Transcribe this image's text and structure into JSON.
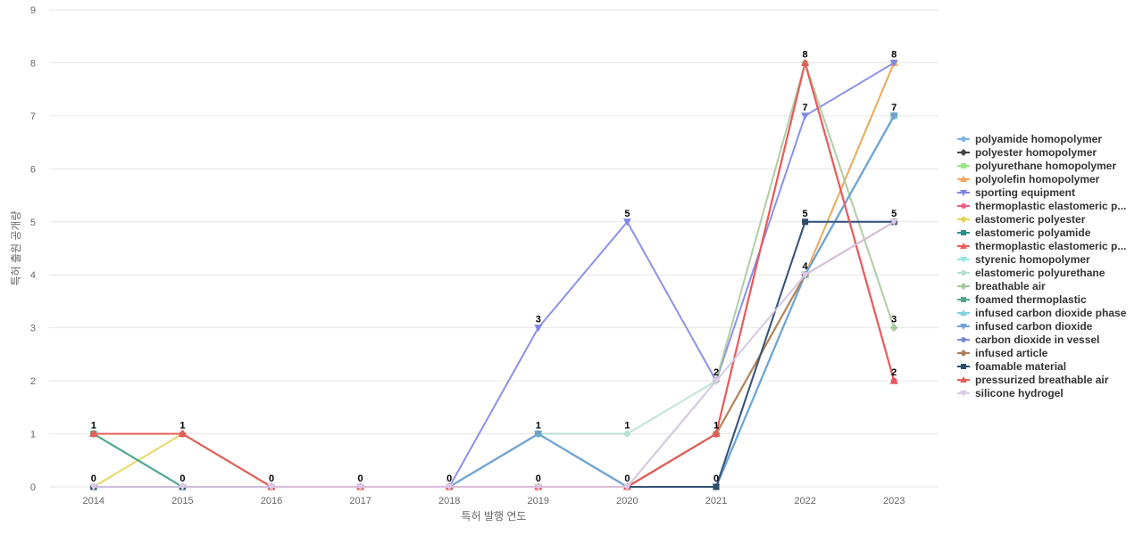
{
  "chart_data": {
    "type": "line",
    "xlabel": "특허 발행 연도",
    "ylabel": "특허 출원 공개량",
    "ylim": [
      0,
      9
    ],
    "x": [
      "2014",
      "2015",
      "2016",
      "2017",
      "2018",
      "2019",
      "2020",
      "2021",
      "2022",
      "2023"
    ],
    "y_ticks": [
      "0",
      "1",
      "2",
      "3",
      "4",
      "5",
      "6",
      "7",
      "8",
      "9"
    ],
    "grid": true,
    "legend_position": "right",
    "series": [
      {
        "name": "polyamide homopolymer",
        "color": "#7cb5ec",
        "marker": "circle",
        "values": [
          0,
          0,
          0,
          0,
          0,
          1,
          0,
          1,
          4,
          7
        ]
      },
      {
        "name": "polyester homopolymer",
        "color": "#434348",
        "marker": "diamond",
        "values": [
          0,
          0,
          0,
          0,
          0,
          1,
          0,
          1,
          4,
          7
        ]
      },
      {
        "name": "polyurethane homopolymer",
        "color": "#90ed7d",
        "marker": "square",
        "values": [
          0,
          0,
          0,
          0,
          0,
          0,
          0,
          1,
          4,
          8
        ]
      },
      {
        "name": "polyolefin homopolymer",
        "color": "#f7a35c",
        "marker": "triangle",
        "values": [
          0,
          0,
          0,
          0,
          0,
          0,
          0,
          1,
          4,
          8
        ]
      },
      {
        "name": "sporting equipment",
        "color": "#8085e9",
        "marker": "triangle-down",
        "values": [
          0,
          0,
          0,
          0,
          0,
          3,
          5,
          2,
          7,
          8
        ]
      },
      {
        "name": "thermoplastic elastomeric p...",
        "color": "#f15c80",
        "marker": "circle",
        "values": [
          0,
          0,
          0,
          0,
          0,
          0,
          0,
          1,
          8,
          2
        ]
      },
      {
        "name": "elastomeric polyester",
        "color": "#e4d354",
        "marker": "diamond",
        "values": [
          0,
          1,
          0,
          0,
          0,
          1,
          0,
          1,
          4,
          7
        ]
      },
      {
        "name": "elastomeric polyamide",
        "color": "#2b908f",
        "marker": "square",
        "values": [
          1,
          0,
          0,
          0,
          0,
          1,
          0,
          0,
          4,
          7
        ]
      },
      {
        "name": "thermoplastic elastomeric p...",
        "color": "#f45b5b",
        "marker": "triangle",
        "values": [
          1,
          1,
          0,
          0,
          0,
          0,
          0,
          1,
          8,
          2
        ]
      },
      {
        "name": "styrenic homopolymer",
        "color": "#91e8e1",
        "marker": "triangle-down",
        "values": [
          0,
          0,
          0,
          0,
          0,
          0,
          0,
          0,
          4,
          7
        ]
      },
      {
        "name": "elastomeric polyurethane",
        "color": "#b4e0d0",
        "marker": "circle",
        "values": [
          0,
          0,
          0,
          0,
          0,
          1,
          1,
          2,
          4,
          7
        ]
      },
      {
        "name": "breathable air",
        "color": "#a5c99b",
        "marker": "diamond",
        "values": [
          0,
          0,
          0,
          0,
          0,
          0,
          0,
          2,
          8,
          3
        ]
      },
      {
        "name": "foamed thermoplastic",
        "color": "#4fa88e",
        "marker": "square",
        "values": [
          1,
          0,
          0,
          0,
          0,
          1,
          0,
          0,
          4,
          7
        ]
      },
      {
        "name": "infused carbon dioxide phase",
        "color": "#7fd0e0",
        "marker": "triangle",
        "values": [
          0,
          0,
          0,
          0,
          0,
          1,
          0,
          0,
          4,
          7
        ]
      },
      {
        "name": "infused carbon dioxide",
        "color": "#6f9fd8",
        "marker": "triangle-down",
        "values": [
          0,
          0,
          0,
          0,
          0,
          1,
          0,
          0,
          4,
          7
        ]
      },
      {
        "name": "carbon dioxide in vessel",
        "color": "#7a8bdc",
        "marker": "circle",
        "values": [
          0,
          0,
          0,
          0,
          0,
          0,
          0,
          0,
          5,
          5
        ]
      },
      {
        "name": "infused article",
        "color": "#b07a5a",
        "marker": "diamond",
        "values": [
          1,
          1,
          0,
          0,
          0,
          0,
          0,
          1,
          4,
          5
        ]
      },
      {
        "name": "foamable material",
        "color": "#2e4d6b",
        "marker": "square",
        "values": [
          0,
          0,
          0,
          0,
          0,
          0,
          0,
          0,
          5,
          5
        ]
      },
      {
        "name": "pressurized breathable air",
        "color": "#e85a5a",
        "marker": "triangle",
        "values": [
          1,
          1,
          0,
          0,
          0,
          0,
          0,
          1,
          8,
          2
        ]
      },
      {
        "name": "silicone hydrogel",
        "color": "#dcc8e8",
        "marker": "triangle-down",
        "values": [
          0,
          0,
          0,
          0,
          0,
          0,
          0,
          2,
          4,
          5
        ]
      }
    ],
    "data_labels": [
      {
        "x": "2014",
        "y": 1,
        "text": "1"
      },
      {
        "x": "2014",
        "y": 0,
        "text": "0"
      },
      {
        "x": "2015",
        "y": 1,
        "text": "1"
      },
      {
        "x": "2015",
        "y": 0,
        "text": "0"
      },
      {
        "x": "2016",
        "y": 0,
        "text": "0"
      },
      {
        "x": "2017",
        "y": 0,
        "text": "0"
      },
      {
        "x": "2018",
        "y": 0,
        "text": "0"
      },
      {
        "x": "2019",
        "y": 3,
        "text": "3"
      },
      {
        "x": "2019",
        "y": 1,
        "text": "1"
      },
      {
        "x": "2019",
        "y": 0,
        "text": "0"
      },
      {
        "x": "2020",
        "y": 5,
        "text": "5"
      },
      {
        "x": "2020",
        "y": 1,
        "text": "1"
      },
      {
        "x": "2020",
        "y": 0,
        "text": "0"
      },
      {
        "x": "2021",
        "y": 2,
        "text": "2"
      },
      {
        "x": "2021",
        "y": 1,
        "text": "1"
      },
      {
        "x": "2021",
        "y": 0,
        "text": "0"
      },
      {
        "x": "2022",
        "y": 8,
        "text": "8"
      },
      {
        "x": "2022",
        "y": 7,
        "text": "7"
      },
      {
        "x": "2022",
        "y": 5,
        "text": "5"
      },
      {
        "x": "2022",
        "y": 4,
        "text": "4"
      },
      {
        "x": "2023",
        "y": 8,
        "text": "8"
      },
      {
        "x": "2023",
        "y": 7,
        "text": "7"
      },
      {
        "x": "2023",
        "y": 5,
        "text": "5"
      },
      {
        "x": "2023",
        "y": 3,
        "text": "3"
      },
      {
        "x": "2023",
        "y": 2,
        "text": "2"
      }
    ]
  }
}
